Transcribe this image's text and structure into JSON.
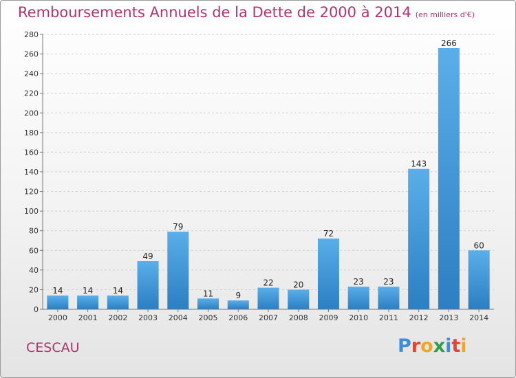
{
  "title": "Remboursements Annuels de la Dette de 2000 à 2014",
  "subtitle": "(en milliers d'€)",
  "town": "CESCAU",
  "logo": {
    "text": "Proxiti",
    "letter_colors": [
      "#3b8fd8",
      "#e0452f",
      "#f2a51f",
      "#2e9e47",
      "#3b8fd8",
      "#e0452f",
      "#f2a51f"
    ]
  },
  "colors": {
    "title": "#b3336d",
    "bar_top": "#5aaee9",
    "bar_bottom": "#2b7fc2"
  },
  "chart_data": {
    "type": "bar",
    "title": "Remboursements Annuels de la Dette de 2000 à 2014",
    "subtitle": "(en milliers d'€)",
    "categories": [
      "2000",
      "2001",
      "2002",
      "2003",
      "2004",
      "2005",
      "2006",
      "2007",
      "2008",
      "2009",
      "2010",
      "2011",
      "2012",
      "2013",
      "2014"
    ],
    "values": [
      14,
      14,
      14,
      49,
      79,
      11,
      9,
      22,
      20,
      72,
      23,
      23,
      143,
      266,
      60
    ],
    "ylim": [
      0,
      280
    ],
    "yticks": [
      0,
      20,
      40,
      60,
      80,
      100,
      120,
      140,
      160,
      180,
      200,
      220,
      240,
      260,
      280
    ],
    "grid": true,
    "xlabel": "",
    "ylabel": ""
  }
}
